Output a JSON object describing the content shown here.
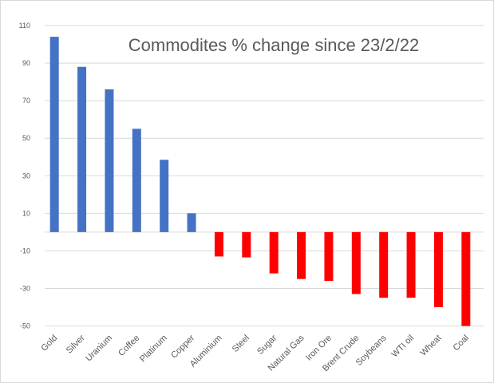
{
  "chart_data": {
    "type": "bar",
    "title": "Commodites % change since 23/2/22",
    "xlabel": "",
    "ylabel": "",
    "ylim": [
      -50,
      110
    ],
    "yticks": [
      110,
      90,
      70,
      50,
      30,
      10,
      -10,
      -30,
      -50
    ],
    "grid": true,
    "legend": "none",
    "categories": [
      "Gold",
      "Silver",
      "Uranium",
      "Coffee",
      "Platinum",
      "Copper",
      "Aluminium",
      "Steel",
      "Sugar",
      "Natural Gas",
      "Iron Ore",
      "Brent Crude",
      "Soybeans",
      "WTI oil",
      "Wheat",
      "Coal"
    ],
    "values": [
      104,
      88,
      76,
      55,
      38.5,
      10,
      -13,
      -13.5,
      -22,
      -25,
      -26,
      -33,
      -35,
      -35,
      -40,
      -50
    ],
    "colors": {
      "positive": "#4472C4",
      "negative": "#FF0000"
    }
  }
}
